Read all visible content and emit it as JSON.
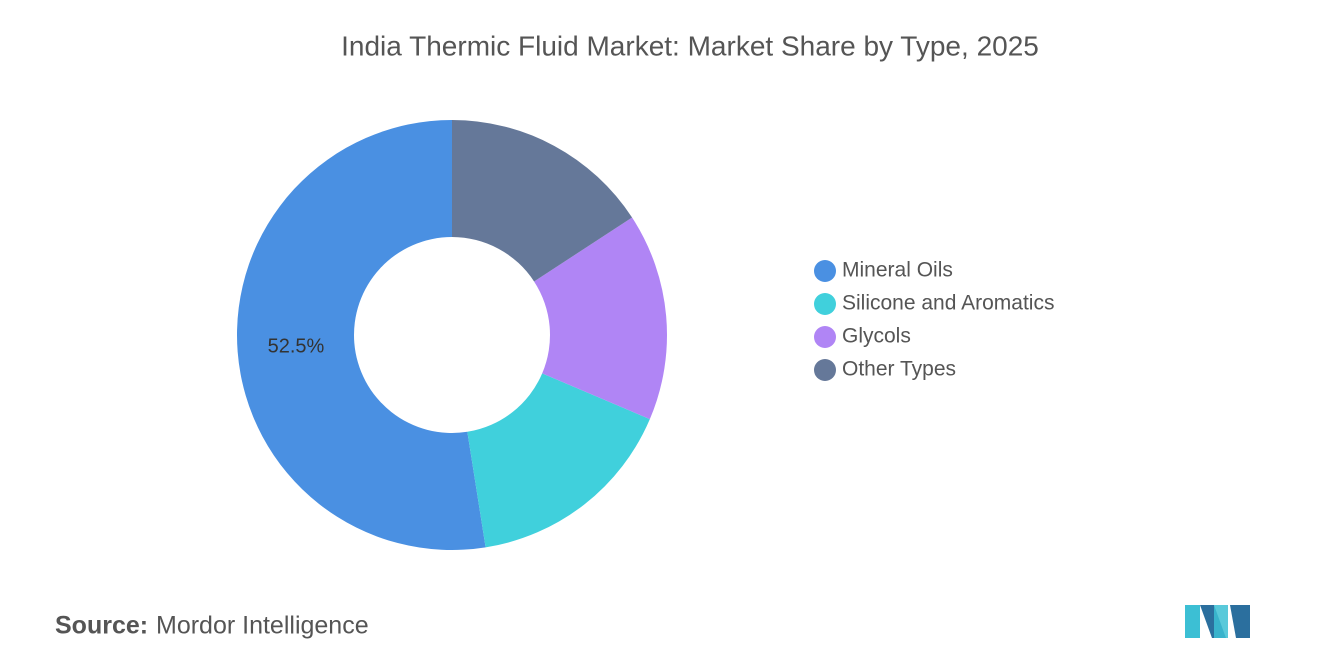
{
  "chart_data": {
    "type": "donut",
    "title": "India Thermic Fluid Market: Market Share by Type, 2025",
    "categories": [
      "Mineral Oils",
      "Silicone and Aromatics",
      "Glycols",
      "Other Types"
    ],
    "values": [
      52.5,
      16.1,
      15.6,
      15.8
    ],
    "value_labels": [
      "52.5%",
      null,
      null,
      null
    ],
    "colors": [
      "#4a90e2",
      "#40d0dc",
      "#b085f5",
      "#657899"
    ],
    "legend": "right"
  },
  "source": {
    "label": "Source:",
    "name": "Mordor Intelligence"
  }
}
